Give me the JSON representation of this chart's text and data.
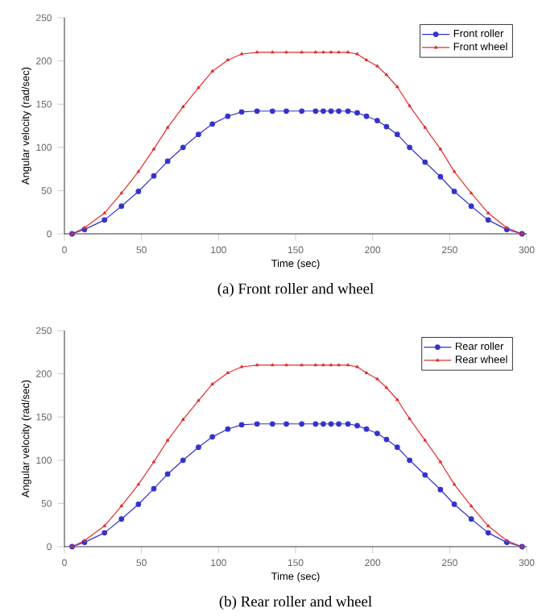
{
  "chart_data": [
    {
      "type": "line",
      "xlabel": "Time (sec)",
      "ylabel": "Angular velocity (rad/sec)",
      "annotations": [
        "(a)  Front roller and wheel"
      ],
      "xlim": [
        0,
        300
      ],
      "ylim": [
        0,
        250
      ],
      "xticks": [
        0,
        50,
        100,
        150,
        200,
        250,
        300
      ],
      "yticks": [
        0,
        50,
        100,
        150,
        200,
        250
      ],
      "legend": "top right",
      "grid": false,
      "line_style": "solid",
      "x": [
        5,
        13,
        26,
        37,
        48,
        58,
        67,
        77,
        87,
        96,
        106,
        115,
        125,
        135,
        144,
        154,
        163,
        168,
        173,
        178,
        184,
        190,
        196,
        203,
        209,
        216,
        224,
        234,
        244,
        253,
        264,
        275,
        287,
        297
      ],
      "series": [
        {
          "name": "Front roller",
          "color": "#3333cc",
          "marker": "circle",
          "values": [
            0,
            5,
            16,
            32,
            49,
            67,
            84,
            100,
            115,
            127,
            136,
            141,
            142,
            142,
            142,
            142,
            142,
            142,
            142,
            142,
            142,
            140,
            136,
            131,
            124,
            115,
            100,
            83,
            66,
            49,
            32,
            16,
            5,
            0
          ]
        },
        {
          "name": "Front wheel",
          "color": "#e03030",
          "marker": "triangle",
          "values": [
            0,
            7,
            24,
            47,
            72,
            98,
            123,
            147,
            169,
            188,
            201,
            208,
            210,
            210,
            210,
            210,
            210,
            210,
            210,
            210,
            210,
            208,
            201,
            194,
            184,
            170,
            148,
            123,
            98,
            72,
            47,
            24,
            7,
            0
          ]
        }
      ]
    },
    {
      "type": "line",
      "xlabel": "Time (sec)",
      "ylabel": "Angular velocity (rad/sec)",
      "annotations": [
        "(b)  Rear roller and wheel"
      ],
      "xlim": [
        0,
        300
      ],
      "ylim": [
        0,
        250
      ],
      "xticks": [
        0,
        50,
        100,
        150,
        200,
        250,
        300
      ],
      "yticks": [
        0,
        50,
        100,
        150,
        200,
        250
      ],
      "legend": "top right",
      "grid": false,
      "line_style": "solid",
      "x": [
        5,
        13,
        26,
        37,
        48,
        58,
        67,
        77,
        87,
        96,
        106,
        115,
        125,
        135,
        144,
        154,
        163,
        168,
        173,
        178,
        184,
        190,
        196,
        203,
        209,
        216,
        224,
        234,
        244,
        253,
        264,
        275,
        287,
        297
      ],
      "series": [
        {
          "name": "Rear roller",
          "color": "#3333cc",
          "marker": "circle",
          "values": [
            0,
            5,
            16,
            32,
            49,
            67,
            84,
            100,
            115,
            127,
            136,
            141,
            142,
            142,
            142,
            142,
            142,
            142,
            142,
            142,
            142,
            140,
            136,
            131,
            124,
            115,
            100,
            83,
            66,
            49,
            32,
            16,
            5,
            0
          ]
        },
        {
          "name": "Rear wheel",
          "color": "#e03030",
          "marker": "triangle",
          "values": [
            0,
            7,
            24,
            47,
            72,
            98,
            123,
            147,
            169,
            188,
            201,
            208,
            210,
            210,
            210,
            210,
            210,
            210,
            210,
            210,
            210,
            208,
            201,
            194,
            184,
            170,
            148,
            123,
            98,
            72,
            47,
            24,
            7,
            0
          ]
        }
      ]
    }
  ]
}
